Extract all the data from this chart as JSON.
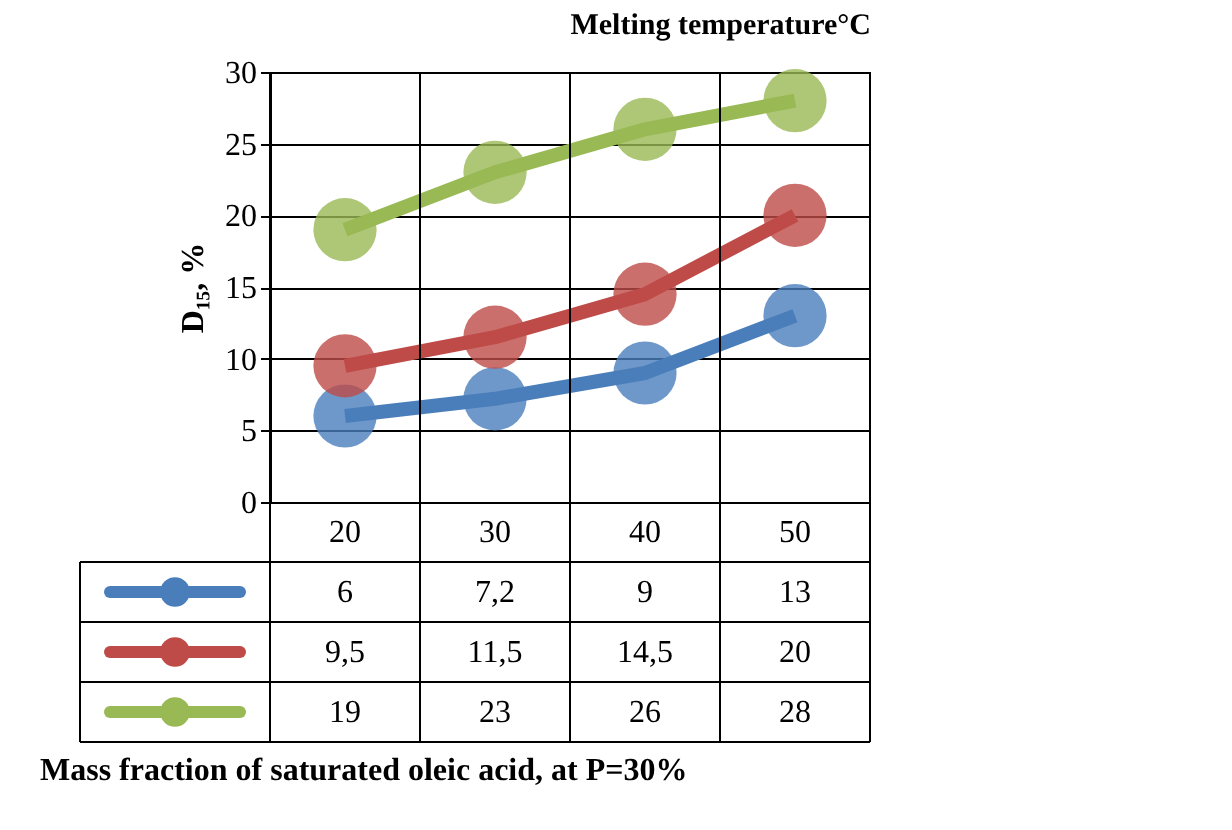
{
  "chart_data": {
    "type": "line",
    "title": "Melting temperature°C",
    "annotations": [
      "Mass fraction of saturated oleic acid, at P=30%"
    ],
    "ylabel": "D₁₅, %",
    "categories": [
      "20",
      "30",
      "40",
      "50"
    ],
    "series": [
      {
        "color": "#4a7ebb",
        "values": [
          6,
          7.2,
          9,
          13
        ],
        "value_labels": [
          "6",
          "7,2",
          "9",
          "13"
        ]
      },
      {
        "color": "#be4b48",
        "values": [
          9.5,
          11.5,
          14.5,
          20
        ],
        "value_labels": [
          "9,5",
          "11,5",
          "14,5",
          "20"
        ]
      },
      {
        "color": "#98b954",
        "values": [
          19,
          23,
          26,
          28
        ],
        "value_labels": [
          "19",
          "23",
          "26",
          "28"
        ]
      }
    ],
    "ylim": [
      0,
      30
    ],
    "yticks": [
      0,
      5,
      10,
      15,
      20,
      25,
      30
    ],
    "grid": true,
    "marker": "circle",
    "tick_labels": "y"
  }
}
